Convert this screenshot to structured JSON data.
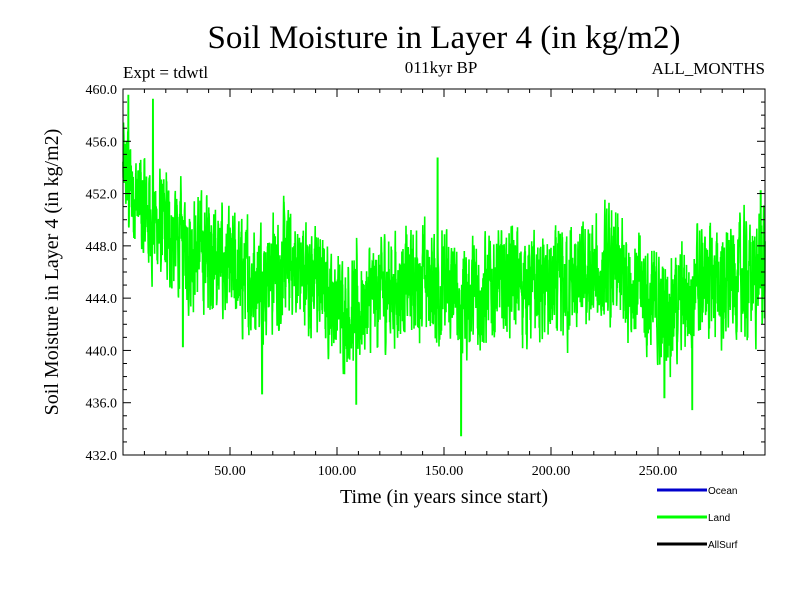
{
  "chart_data": {
    "type": "line",
    "title": "Soil Moisture in Layer 4 (in kg/m2)",
    "subtitle_left": "Expt = tdwtl",
    "subtitle_center": "011kyr BP",
    "subtitle_right": "ALL_MONTHS",
    "xlabel": "Time (in years since start)",
    "ylabel": "Soil Moisture in Layer 4 (in kg/m2)",
    "xlim": [
      0,
      300
    ],
    "ylim": [
      432,
      460
    ],
    "xticks": [
      50,
      100,
      150,
      200,
      250
    ],
    "xtick_labels": [
      "50.00",
      "100.00",
      "150.00",
      "200.00",
      "250.00"
    ],
    "yticks": [
      432,
      436,
      440,
      444,
      448,
      452,
      456,
      460
    ],
    "ytick_labels": [
      "432.0",
      "436.0",
      "440.0",
      "444.0",
      "448.0",
      "452.0",
      "456.0",
      "460.0"
    ],
    "legend": [
      {
        "name": "Ocean",
        "color": "#0000cc"
      },
      {
        "name": "Land",
        "color": "#00ff00"
      },
      {
        "name": "AllSurf",
        "color": "#000000"
      }
    ],
    "series": [
      {
        "name": "Land",
        "color": "#00ff00",
        "sampling": "monthly (12 per year)",
        "trend_x": [
          0,
          5,
          10,
          20,
          30,
          40,
          50,
          60,
          70,
          80,
          90,
          100,
          110,
          120,
          130,
          140,
          150,
          160,
          170,
          180,
          190,
          200,
          210,
          220,
          230,
          240,
          250,
          260,
          270,
          280,
          290,
          300
        ],
        "trend_y": [
          453.5,
          452.0,
          450.5,
          449.0,
          448.0,
          447.5,
          446.0,
          445.5,
          446.0,
          446.5,
          445.5,
          443.5,
          443.0,
          444.5,
          445.0,
          445.5,
          444.5,
          444.0,
          444.5,
          445.5,
          445.0,
          444.5,
          445.0,
          445.5,
          446.0,
          445.0,
          443.0,
          443.5,
          445.5,
          445.0,
          445.5,
          446.0
        ],
        "spread": 3.0,
        "extremes": [
          {
            "x": 2.5,
            "y": 459.5
          },
          {
            "x": 14,
            "y": 459.2
          },
          {
            "x": 28,
            "y": 440.3
          },
          {
            "x": 65,
            "y": 436.7
          },
          {
            "x": 109,
            "y": 435.9
          },
          {
            "x": 147,
            "y": 454.7
          },
          {
            "x": 158,
            "y": 433.5
          },
          {
            "x": 253,
            "y": 436.4
          },
          {
            "x": 266,
            "y": 435.5
          },
          {
            "x": 298,
            "y": 452.2
          }
        ]
      }
    ]
  }
}
